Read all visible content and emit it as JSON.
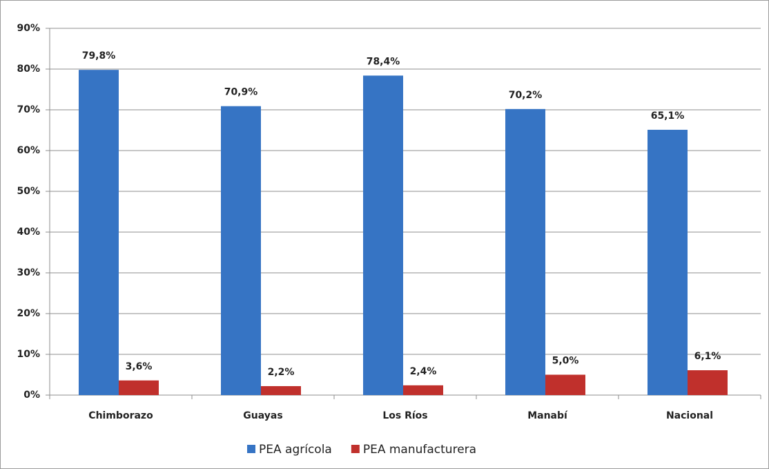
{
  "chart_data": {
    "type": "bar",
    "categories": [
      "Chimborazo",
      "Guayas",
      "Los Ríos",
      "Manabí",
      "Nacional"
    ],
    "series": [
      {
        "name": "PEA agrícola",
        "color": "#3674c4",
        "values": [
          79.8,
          70.9,
          78.4,
          70.2,
          65.1
        ],
        "value_labels": [
          "79,8%",
          "70,9%",
          "78,4%",
          "70,2%",
          "65,1%"
        ]
      },
      {
        "name": "PEA manufacturera",
        "color": "#c0302c",
        "values": [
          3.6,
          2.2,
          2.4,
          5.0,
          6.1
        ],
        "value_labels": [
          "3,6%",
          "2,2%",
          "2,4%",
          "5,0%",
          "6,1%"
        ]
      }
    ],
    "ylim": [
      0,
      90
    ],
    "yticks": [
      {
        "value": 0,
        "label": "0%"
      },
      {
        "value": 10,
        "label": "10%"
      },
      {
        "value": 20,
        "label": "20%"
      },
      {
        "value": 30,
        "label": "30%"
      },
      {
        "value": 40,
        "label": "40%"
      },
      {
        "value": 50,
        "label": "50%"
      },
      {
        "value": 60,
        "label": "60%"
      },
      {
        "value": 70,
        "label": "70%"
      },
      {
        "value": 80,
        "label": "80%"
      },
      {
        "value": 90,
        "label": "90%"
      }
    ],
    "grid": true,
    "legend": "bottom"
  }
}
